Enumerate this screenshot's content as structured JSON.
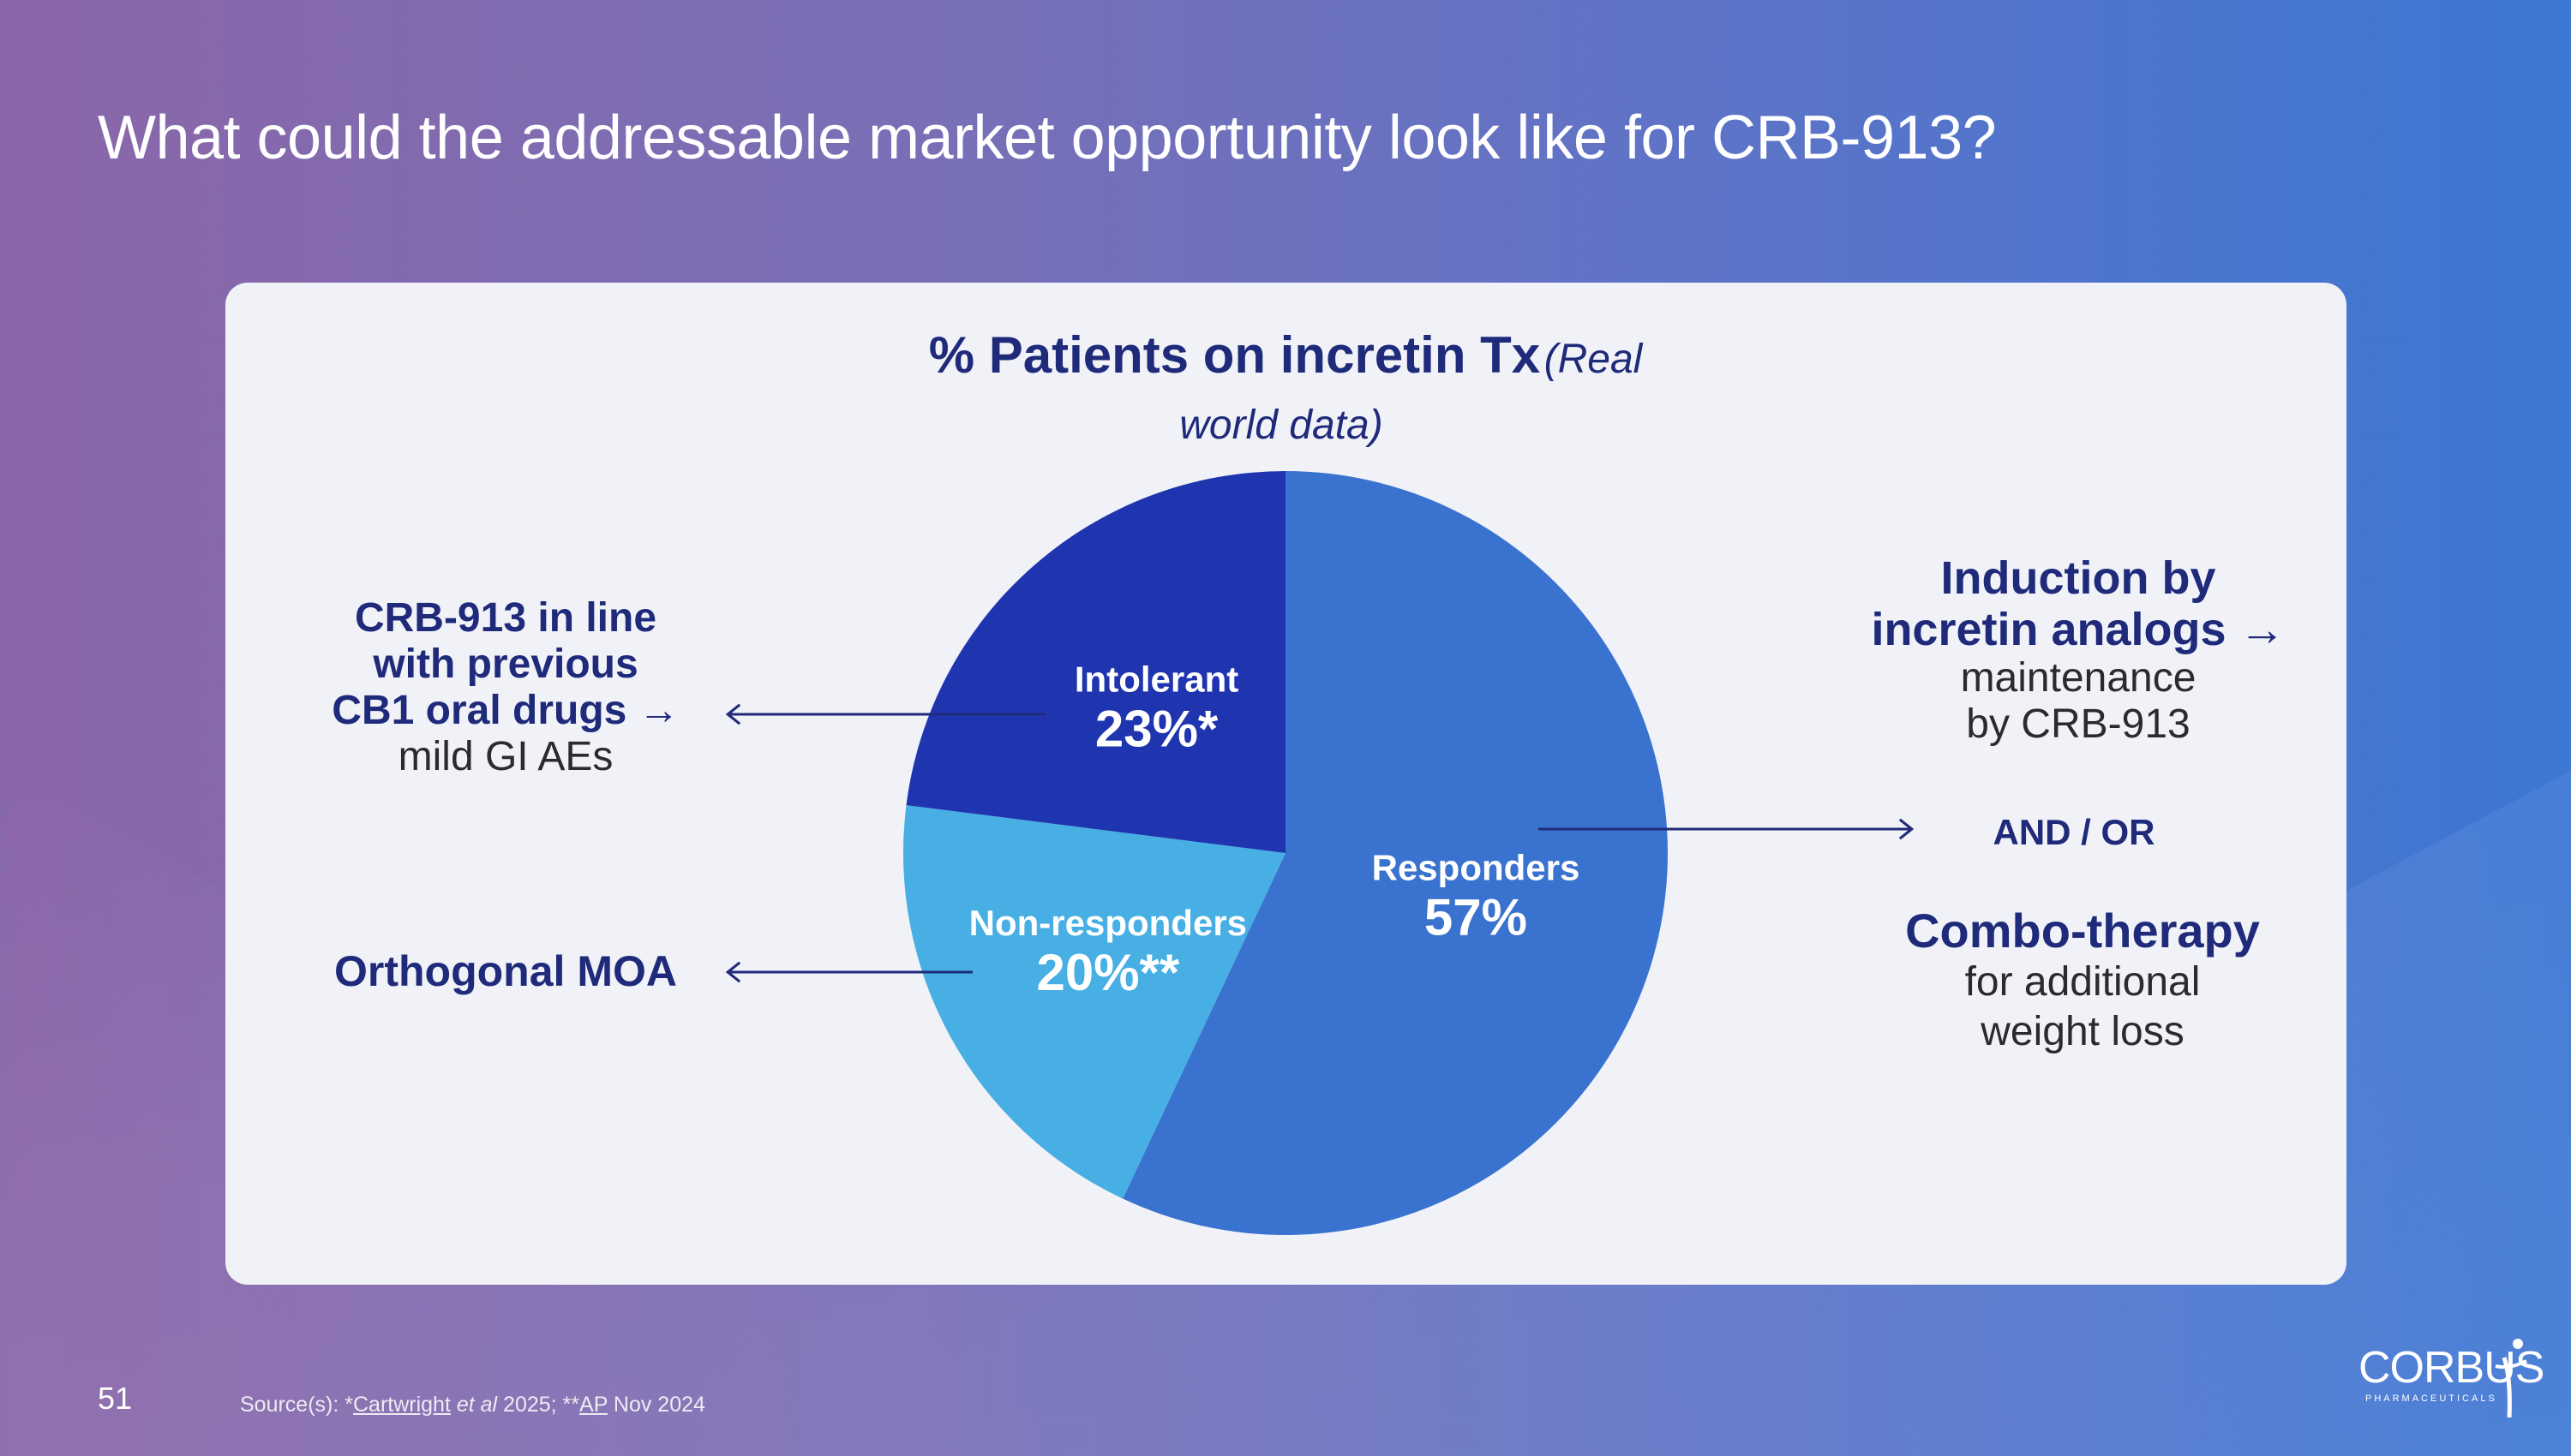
{
  "slide": {
    "title": "What could the addressable market opportunity look like for CRB-913?",
    "page_number": "51",
    "source": {
      "prefix": "Source(s): *",
      "ref1": "Cartwright",
      "ref1_etal": " et al",
      "ref1_year": " 2025;  **",
      "ref2": "AP",
      "ref2_date": " Nov 2024"
    },
    "logo": {
      "name": "CORBUS",
      "sub": "PHARMACEUTICALS"
    }
  },
  "colors": {
    "responders": "#3a73cf",
    "intolerant": "#1f35b0",
    "non_responders": "#47afe3",
    "arrow": "#1f2b7a",
    "text_dark_blue": "#1f2b7a"
  },
  "chart_data": {
    "type": "pie",
    "title": "% Patients on incretin Tx",
    "subtitle": "(Real world data)",
    "subtitle_line1": "(Real",
    "subtitle_line2": "world data)",
    "slices": [
      {
        "label": "Responders",
        "value": 57,
        "display": "57%"
      },
      {
        "label": "Non-responders",
        "value": 20,
        "display": "20%**"
      },
      {
        "label": "Intolerant",
        "value": 23,
        "display": "23%*"
      }
    ]
  },
  "annotations": {
    "left_top": {
      "bold_line1": "CRB-913 in line",
      "bold_line2": "with previous",
      "bold_line3": "CB1 oral drugs",
      "arrow_glyph": "→",
      "regular": "mild GI AEs"
    },
    "left_bottom": {
      "bold": "Orthogonal MOA"
    },
    "right_top": {
      "bold_line1": "Induction by",
      "bold_line2": "incretin analogs",
      "arrow_glyph": "→",
      "regular_line1": "maintenance",
      "regular_line2": "by CRB-913"
    },
    "andor": "AND / OR",
    "right_bottom": {
      "bold": "Combo-therapy",
      "regular_line1": "for additional",
      "regular_line2": "weight loss"
    }
  }
}
